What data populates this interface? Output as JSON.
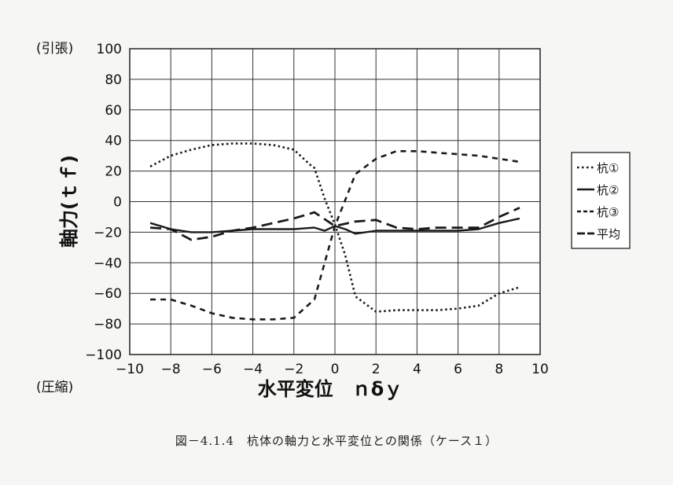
{
  "chart_data": {
    "type": "line",
    "xlabel": "水平変位　ｎδｙ",
    "ylabel": "軸力(ｔｆ)",
    "ylabel_top_note": "(引張)",
    "ylabel_bottom_note": "(圧縮)",
    "xlim": [
      -10,
      10
    ],
    "ylim": [
      -100,
      100
    ],
    "xticks": [
      -10,
      -8,
      -6,
      -4,
      -2,
      0,
      2,
      4,
      6,
      8,
      10
    ],
    "yticks": [
      100,
      80,
      60,
      40,
      20,
      0,
      -20,
      -40,
      -60,
      -80,
      -100
    ],
    "grid": true,
    "legend_position": "right",
    "series": [
      {
        "name": "杭①",
        "style": "dotted",
        "x": [
          -9,
          -8,
          -7,
          -6,
          -5,
          -4,
          -3,
          -2,
          -1.2,
          -1,
          -0.5,
          0,
          0.5,
          1,
          2,
          3,
          4,
          5,
          6,
          7,
          8,
          9
        ],
        "y": [
          23,
          30,
          34,
          37,
          38,
          38,
          37,
          34,
          24,
          22,
          2,
          -15,
          -35,
          -62,
          -72,
          -71,
          -71,
          -71,
          -70,
          -68,
          -60,
          -56
        ]
      },
      {
        "name": "杭②",
        "style": "solid",
        "x": [
          -9,
          -8,
          -7,
          -6,
          -5,
          -4,
          -3,
          -2,
          -1,
          -0.5,
          0,
          0.5,
          1,
          2,
          3,
          4,
          5,
          6,
          7,
          8,
          9
        ],
        "y": [
          -14,
          -18,
          -20,
          -20,
          -19,
          -18,
          -18,
          -18,
          -17,
          -19,
          -16,
          -18,
          -21,
          -19,
          -19,
          -19,
          -19,
          -19,
          -18,
          -14,
          -11
        ]
      },
      {
        "name": "杭③",
        "style": "dashed",
        "x": [
          -9,
          -8,
          -7,
          -6,
          -5,
          -4,
          -3,
          -2,
          -1,
          0,
          1,
          2,
          3,
          4,
          5,
          6,
          7,
          8,
          9
        ],
        "y": [
          -64,
          -64,
          -68,
          -73,
          -76,
          -77,
          -77,
          -76,
          -64,
          -16,
          18,
          28,
          33,
          33,
          32,
          31,
          30,
          28,
          26
        ]
      },
      {
        "name": "平均",
        "style": "longdash",
        "x": [
          -9,
          -8,
          -7,
          -6,
          -5,
          -4,
          -3,
          -2,
          -1,
          0,
          1,
          2,
          3,
          4,
          5,
          6,
          7,
          8,
          9
        ],
        "y": [
          -17,
          -18,
          -25,
          -23,
          -19,
          -17,
          -14,
          -11,
          -7,
          -16,
          -13,
          -12,
          -17,
          -18,
          -17,
          -17,
          -17,
          -10,
          -4
        ]
      }
    ]
  },
  "caption": "図－4.1.4　杭体の軸力と水平変位との関係（ケース１）"
}
